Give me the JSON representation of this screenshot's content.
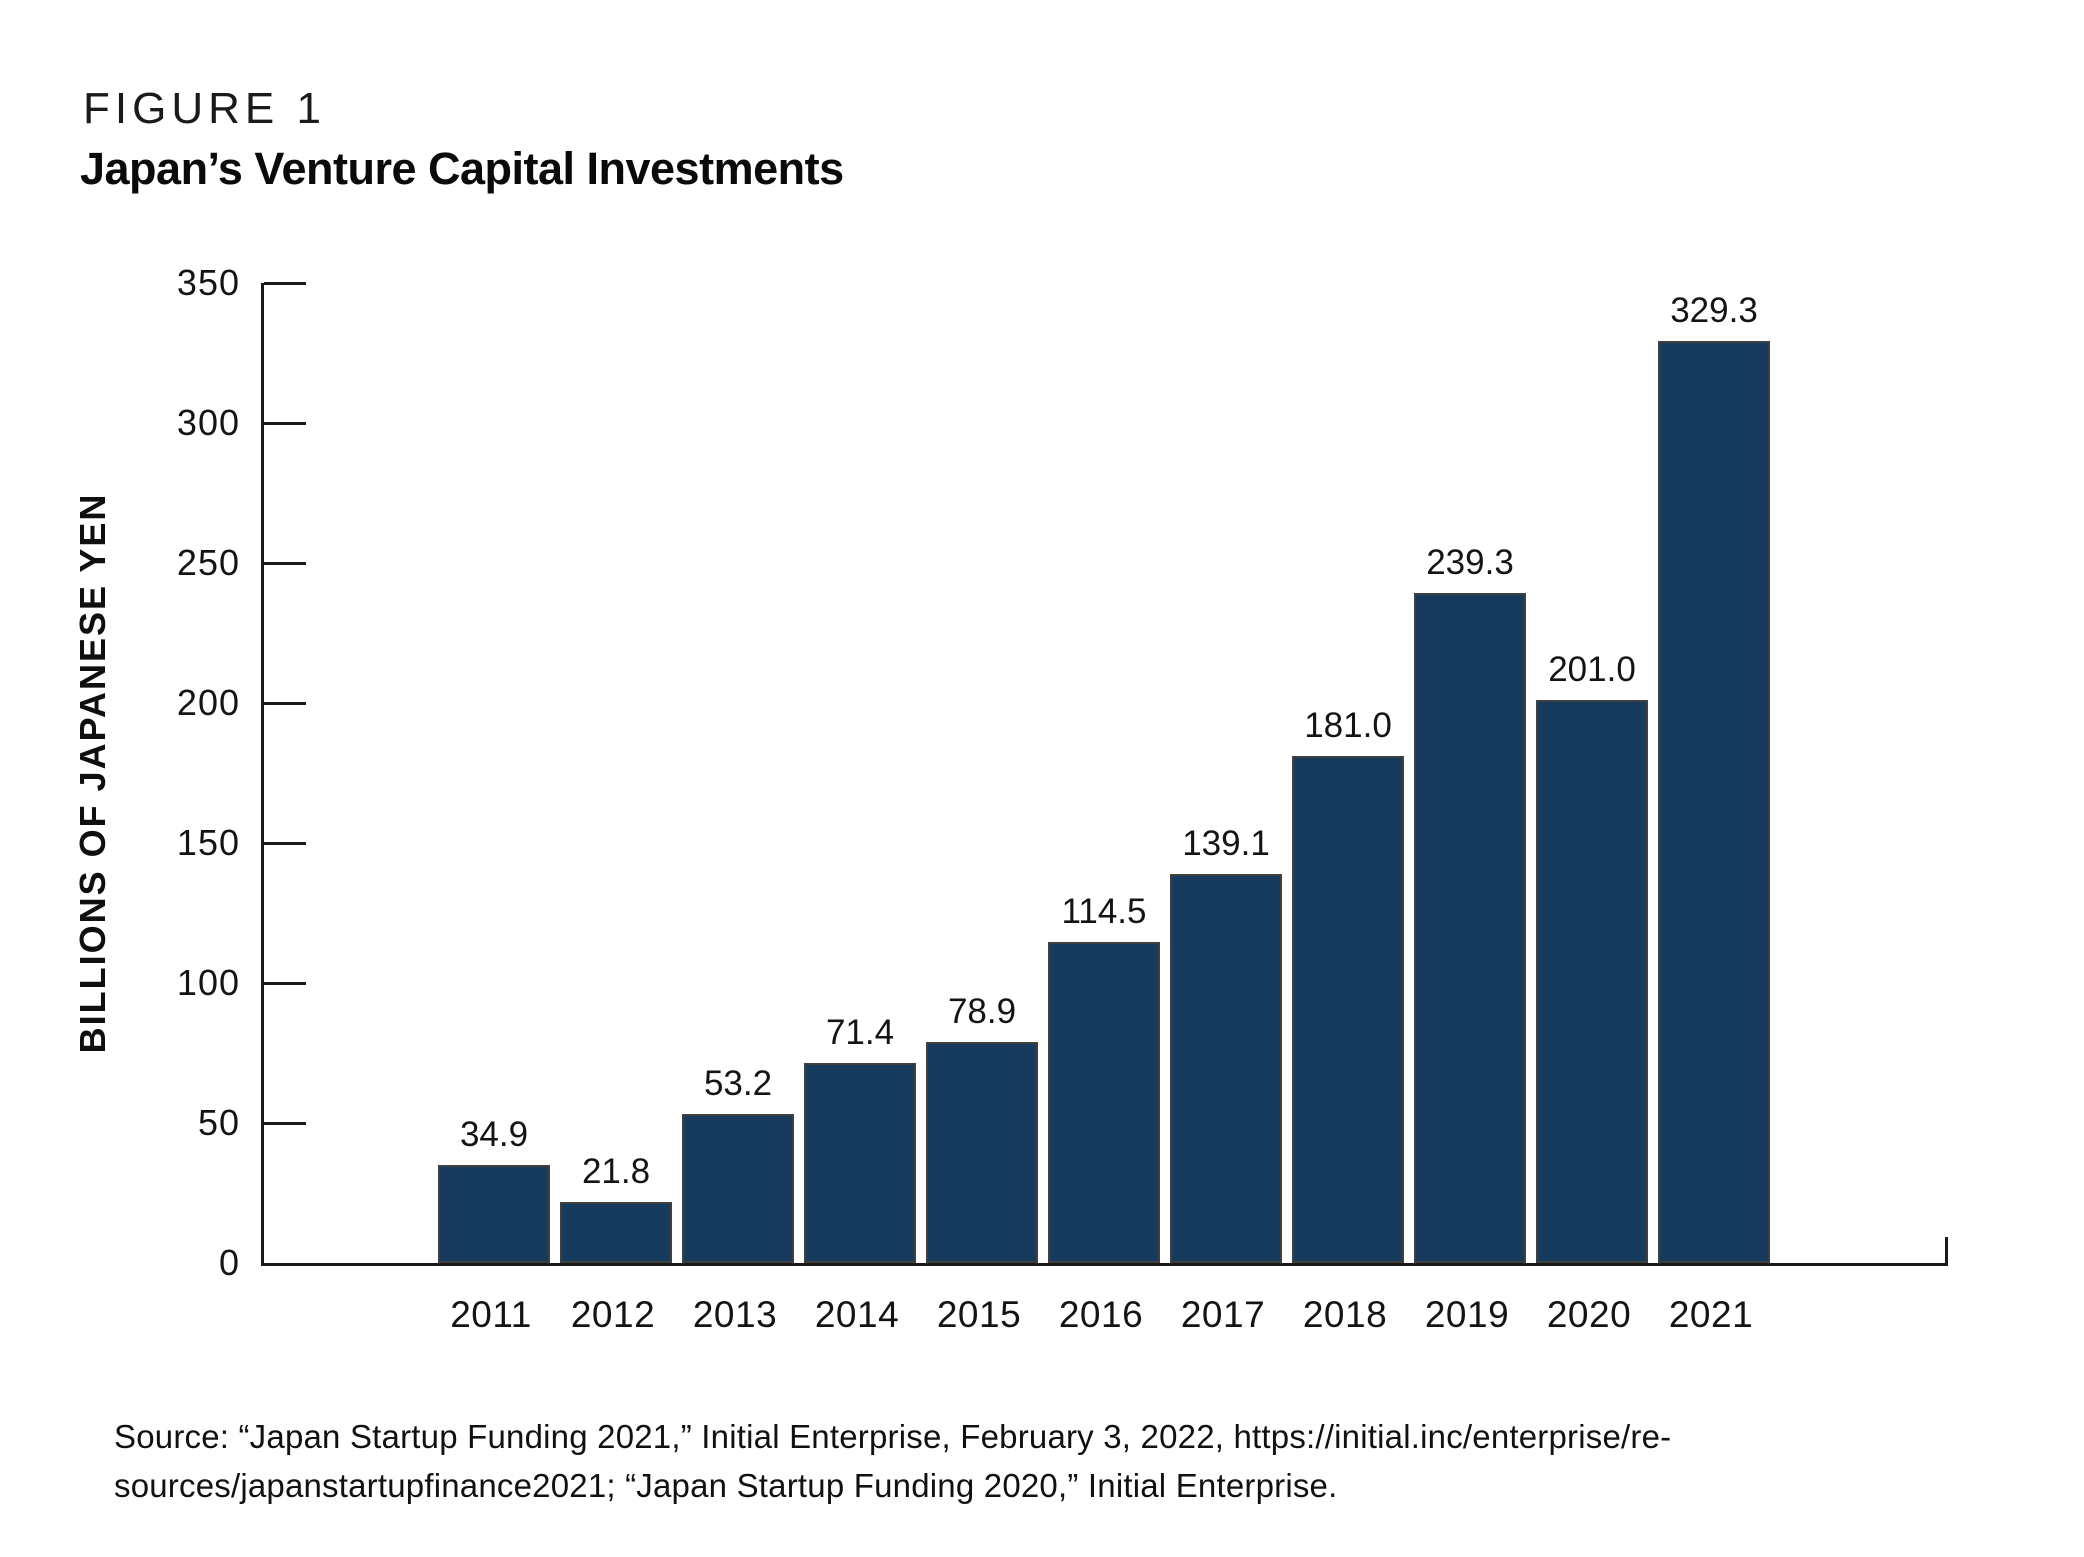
{
  "figure": {
    "label": "FIGURE 1",
    "title": "Japan’s Venture Capital Investments"
  },
  "chart_data": {
    "type": "bar",
    "title": "Japan’s Venture Capital Investments",
    "categories": [
      "2011",
      "2012",
      "2013",
      "2014",
      "2015",
      "2016",
      "2017",
      "2018",
      "2019",
      "2020",
      "2021"
    ],
    "values": [
      34.9,
      21.8,
      53.2,
      71.4,
      78.9,
      114.5,
      139.1,
      181.0,
      239.3,
      201.0,
      329.3
    ],
    "value_labels": [
      "34.9",
      "21.8",
      "53.2",
      "71.4",
      "78.9",
      "114.5",
      "139.1",
      "181.0",
      "239.3",
      "201.0",
      "329.3"
    ],
    "xlabel": "",
    "ylabel": "BILLIONS OF JAPANESE YEN",
    "ylim": [
      0,
      350
    ],
    "yticks": [
      0,
      50,
      100,
      150,
      200,
      250,
      300,
      350
    ],
    "grid": false,
    "legend": "none",
    "bar_color": "#173B5C",
    "bar_border_color": "#3F3F3F",
    "axis_color": "#1A1A1A",
    "text_color": "#141414"
  },
  "source": {
    "line1": "Source: “Japan Startup Funding 2021,” Initial Enterprise, February 3, 2022, https://initial.inc/enterprise/re-",
    "line2": "sources/japanstartupfinance2021; “Japan Startup Funding 2020,” Initial Enterprise."
  }
}
